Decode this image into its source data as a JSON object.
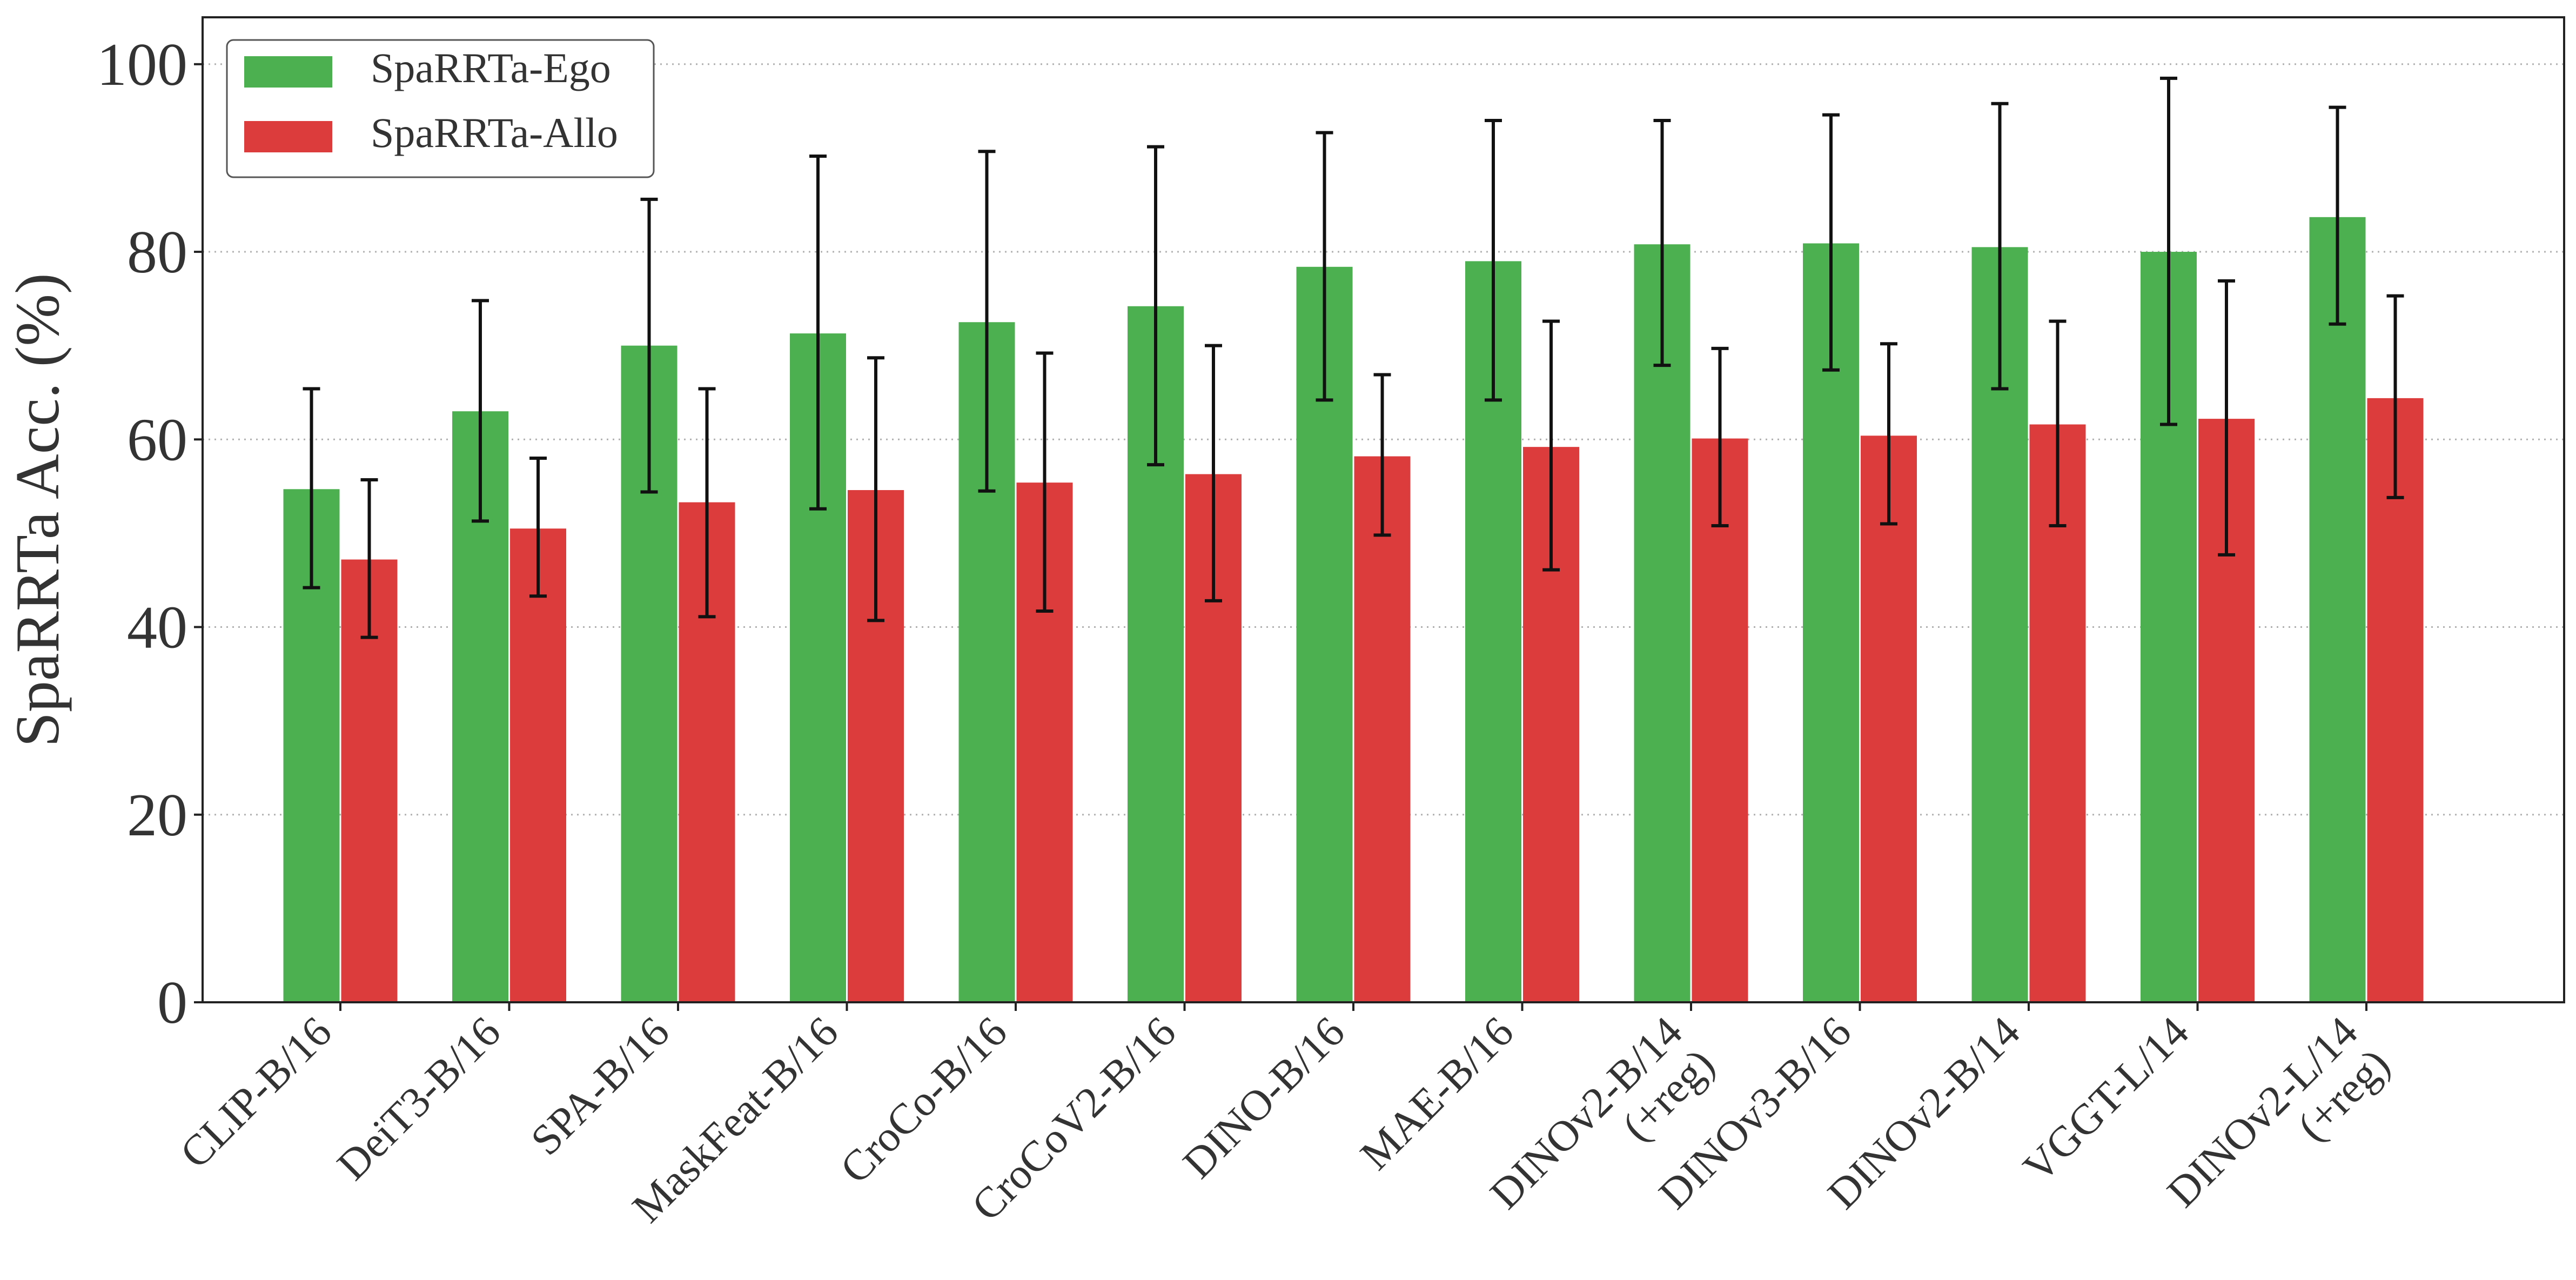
{
  "chart_data": {
    "type": "bar",
    "ylabel": "SpaRRTa Acc. (%)",
    "ylim": [
      0,
      105
    ],
    "yticks": [
      0,
      20,
      40,
      60,
      80,
      100
    ],
    "grid": "y-dotted",
    "legend_position": "top-left",
    "categories": [
      "CLIP-B/16",
      "DeiT3-B/16",
      "SPA-B/16",
      "MaskFeat-B/16",
      "CroCo-B/16",
      "CroCoV2-B/16",
      "DINO-B/16",
      "MAE-B/16",
      "DINOv2-B/14\n(+reg)",
      "DINOv3-B/16",
      "DINOv2-B/14",
      "VGGT-L/14",
      "DINOv2-L/14\n(+reg)"
    ],
    "series": [
      {
        "name": "SpaRRTa-Ego",
        "color": "#4caf50",
        "values": [
          54.7,
          63.0,
          70.0,
          71.3,
          72.5,
          74.2,
          78.4,
          79.0,
          80.8,
          80.9,
          80.5,
          80.0,
          83.7
        ],
        "err_low": [
          44.2,
          51.3,
          54.4,
          52.6,
          54.5,
          57.3,
          64.2,
          64.2,
          67.9,
          67.4,
          65.4,
          61.6,
          72.3
        ],
        "err_high": [
          65.4,
          74.8,
          85.6,
          90.2,
          90.7,
          91.2,
          92.7,
          94.0,
          94.0,
          94.6,
          95.8,
          98.5,
          95.4
        ]
      },
      {
        "name": "SpaRRTa-Allo",
        "color": "#dc3c3c",
        "values": [
          47.2,
          50.5,
          53.3,
          54.6,
          55.4,
          56.3,
          58.2,
          59.2,
          60.1,
          60.4,
          61.6,
          62.2,
          64.4
        ],
        "err_low": [
          38.9,
          43.3,
          41.1,
          40.7,
          41.7,
          42.8,
          49.8,
          46.1,
          50.8,
          51.0,
          50.8,
          47.7,
          53.8
        ],
        "err_high": [
          55.7,
          58.0,
          65.4,
          68.7,
          69.2,
          70.0,
          66.9,
          72.6,
          69.7,
          70.2,
          72.6,
          76.9,
          75.3
        ]
      }
    ]
  }
}
